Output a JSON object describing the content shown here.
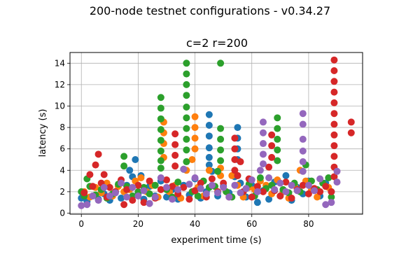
{
  "figure": {
    "suptitle": "200-node testnet configurations - v0.34.27"
  },
  "chart_data": {
    "type": "scatter",
    "title": "c=2 r=200",
    "xlabel": "experiment time (s)",
    "ylabel": "latency (s)",
    "xlim": [
      -4,
      99
    ],
    "ylim": [
      -0.1,
      15
    ],
    "xticks": [
      0,
      20,
      40,
      60,
      80
    ],
    "yticks": [
      0,
      2,
      4,
      6,
      8,
      10,
      12,
      14
    ],
    "grid": true,
    "colors": [
      "#1f77b4",
      "#ff7f0e",
      "#2ca02c",
      "#d62728",
      "#9467bd"
    ],
    "series": [
      {
        "color": "#1f77b4",
        "points": [
          [
            0,
            1.4
          ],
          [
            2,
            1.1
          ],
          [
            4,
            1.6
          ],
          [
            6,
            1.3
          ],
          [
            8,
            1.8
          ],
          [
            10,
            1.2
          ],
          [
            12,
            2.0
          ],
          [
            14,
            1.4
          ],
          [
            16,
            2.6
          ],
          [
            17,
            4.0
          ],
          [
            18,
            3.4
          ],
          [
            19,
            5.0
          ],
          [
            20,
            1.8
          ],
          [
            21,
            3.5
          ],
          [
            22,
            1.3
          ],
          [
            24,
            2.5
          ],
          [
            26,
            1.6
          ],
          [
            28,
            3.0
          ],
          [
            30,
            1.5
          ],
          [
            32,
            2.2
          ],
          [
            34,
            1.3
          ],
          [
            36,
            2.6
          ],
          [
            38,
            1.7
          ],
          [
            40,
            3.2
          ],
          [
            42,
            1.4
          ],
          [
            44,
            2.0
          ],
          [
            45,
            4.5
          ],
          [
            45,
            5.2
          ],
          [
            45,
            6.1
          ],
          [
            45,
            7.2
          ],
          [
            45,
            8.2
          ],
          [
            45,
            9.2
          ],
          [
            46,
            3.9
          ],
          [
            48,
            1.6
          ],
          [
            50,
            2.5
          ],
          [
            52,
            1.9
          ],
          [
            54,
            3.4
          ],
          [
            55,
            5.0
          ],
          [
            55,
            6.0
          ],
          [
            55,
            7.0
          ],
          [
            55,
            8.0
          ],
          [
            56,
            2.8
          ],
          [
            58,
            1.5
          ],
          [
            60,
            2.6
          ],
          [
            62,
            1.0
          ],
          [
            64,
            2.1
          ],
          [
            66,
            1.3
          ],
          [
            68,
            2.9
          ],
          [
            70,
            1.6
          ],
          [
            72,
            3.5
          ],
          [
            74,
            1.2
          ],
          [
            76,
            2.4
          ],
          [
            78,
            1.8
          ],
          [
            80,
            3.0
          ],
          [
            82,
            2.2
          ],
          [
            84,
            1.6
          ],
          [
            86,
            2.8
          ],
          [
            88,
            2.0
          ]
        ]
      },
      {
        "color": "#ff7f0e",
        "points": [
          [
            1,
            2.0
          ],
          [
            3,
            1.5
          ],
          [
            5,
            2.4
          ],
          [
            7,
            1.9
          ],
          [
            9,
            2.8
          ],
          [
            11,
            1.6
          ],
          [
            13,
            2.5
          ],
          [
            15,
            2.0
          ],
          [
            17,
            2.2
          ],
          [
            19,
            3.0
          ],
          [
            21,
            3.3
          ],
          [
            23,
            2.0
          ],
          [
            25,
            2.6
          ],
          [
            27,
            1.5
          ],
          [
            29,
            5.2
          ],
          [
            29,
            6.5
          ],
          [
            29,
            7.5
          ],
          [
            29,
            8.5
          ],
          [
            31,
            2.0
          ],
          [
            33,
            2.6
          ],
          [
            35,
            1.4
          ],
          [
            37,
            4.0
          ],
          [
            39,
            5.0
          ],
          [
            40,
            6.0
          ],
          [
            40,
            7.0
          ],
          [
            40,
            8.0
          ],
          [
            40,
            9.0
          ],
          [
            41,
            2.4
          ],
          [
            43,
            1.6
          ],
          [
            45,
            4.0
          ],
          [
            47,
            2.5
          ],
          [
            49,
            3.5
          ],
          [
            49,
            4.2
          ],
          [
            51,
            2.0
          ],
          [
            53,
            3.5
          ],
          [
            55,
            2.6
          ],
          [
            57,
            1.5
          ],
          [
            59,
            2.4
          ],
          [
            61,
            2.2
          ],
          [
            63,
            3.0
          ],
          [
            65,
            2.6
          ],
          [
            67,
            1.8
          ],
          [
            69,
            3.1
          ],
          [
            71,
            2.0
          ],
          [
            73,
            1.4
          ],
          [
            75,
            2.6
          ],
          [
            77,
            4.0
          ],
          [
            79,
            3.0
          ],
          [
            81,
            2.2
          ],
          [
            83,
            1.5
          ],
          [
            85,
            2.8
          ],
          [
            87,
            2.4
          ]
        ]
      },
      {
        "color": "#2ca02c",
        "points": [
          [
            0,
            2.0
          ],
          [
            1,
            1.6
          ],
          [
            2,
            3.2
          ],
          [
            3,
            2.5
          ],
          [
            5,
            1.7
          ],
          [
            7,
            2.2
          ],
          [
            9,
            1.4
          ],
          [
            11,
            1.8
          ],
          [
            13,
            2.7
          ],
          [
            15,
            4.4
          ],
          [
            15,
            5.3
          ],
          [
            16,
            2.5
          ],
          [
            18,
            1.6
          ],
          [
            20,
            2.0
          ],
          [
            22,
            2.4
          ],
          [
            24,
            1.8
          ],
          [
            26,
            2.6
          ],
          [
            28,
            4.2
          ],
          [
            28,
            4.9
          ],
          [
            28,
            5.8
          ],
          [
            28,
            6.8
          ],
          [
            28,
            7.8
          ],
          [
            28,
            8.8
          ],
          [
            28,
            9.8
          ],
          [
            28,
            10.8
          ],
          [
            30,
            2.2
          ],
          [
            32,
            1.5
          ],
          [
            34,
            2.9
          ],
          [
            36,
            4.1
          ],
          [
            37,
            4.8
          ],
          [
            37,
            5.9
          ],
          [
            37,
            6.9
          ],
          [
            37,
            7.9
          ],
          [
            37,
            8.9
          ],
          [
            37,
            9.9
          ],
          [
            37,
            11.0
          ],
          [
            37,
            12.0
          ],
          [
            37,
            13.0
          ],
          [
            37,
            14.0
          ],
          [
            39,
            2.0
          ],
          [
            41,
            1.6
          ],
          [
            43,
            3.0
          ],
          [
            45,
            2.4
          ],
          [
            47,
            2.5
          ],
          [
            48,
            3.9
          ],
          [
            49,
            4.9
          ],
          [
            49,
            5.9
          ],
          [
            49,
            6.9
          ],
          [
            49,
            7.9
          ],
          [
            49,
            14.0
          ],
          [
            51,
            2.0
          ],
          [
            53,
            1.5
          ],
          [
            55,
            3.5
          ],
          [
            57,
            2.0
          ],
          [
            59,
            2.7
          ],
          [
            61,
            1.6
          ],
          [
            63,
            3.3
          ],
          [
            65,
            2.3
          ],
          [
            67,
            2.6
          ],
          [
            69,
            4.9
          ],
          [
            69,
            5.9
          ],
          [
            69,
            6.9
          ],
          [
            69,
            7.9
          ],
          [
            69,
            8.9
          ],
          [
            71,
            2.2
          ],
          [
            73,
            1.9
          ],
          [
            75,
            2.8
          ],
          [
            77,
            2.0
          ],
          [
            79,
            4.5
          ],
          [
            81,
            3.0
          ],
          [
            83,
            2.2
          ],
          [
            85,
            2.8
          ],
          [
            87,
            3.3
          ],
          [
            88,
            1.5
          ]
        ]
      },
      {
        "color": "#d62728",
        "points": [
          [
            1,
            1.9
          ],
          [
            3,
            3.6
          ],
          [
            4,
            2.5
          ],
          [
            5,
            4.5
          ],
          [
            6,
            5.5
          ],
          [
            7,
            2.8
          ],
          [
            8,
            3.6
          ],
          [
            9,
            1.5
          ],
          [
            10,
            2.4
          ],
          [
            12,
            2.0
          ],
          [
            14,
            3.1
          ],
          [
            15,
            0.8
          ],
          [
            16,
            2.2
          ],
          [
            18,
            1.2
          ],
          [
            20,
            2.6
          ],
          [
            22,
            1.0
          ],
          [
            24,
            3.0
          ],
          [
            26,
            1.4
          ],
          [
            28,
            2.2
          ],
          [
            30,
            3.1
          ],
          [
            32,
            2.5
          ],
          [
            33,
            4.4
          ],
          [
            33,
            5.4
          ],
          [
            33,
            6.4
          ],
          [
            33,
            7.4
          ],
          [
            34,
            1.8
          ],
          [
            36,
            2.4
          ],
          [
            38,
            1.3
          ],
          [
            40,
            2.1
          ],
          [
            42,
            2.8
          ],
          [
            44,
            1.5
          ],
          [
            46,
            3.2
          ],
          [
            48,
            2.0
          ],
          [
            50,
            2.8
          ],
          [
            52,
            1.5
          ],
          [
            54,
            4.0
          ],
          [
            54,
            5.0
          ],
          [
            54,
            6.0
          ],
          [
            54,
            7.0
          ],
          [
            55,
            3.5
          ],
          [
            56,
            4.8
          ],
          [
            57,
            2.0
          ],
          [
            59,
            3.2
          ],
          [
            60,
            1.5
          ],
          [
            62,
            2.5
          ],
          [
            64,
            2.0
          ],
          [
            66,
            4.3
          ],
          [
            67,
            5.2
          ],
          [
            67,
            6.3
          ],
          [
            67,
            7.3
          ],
          [
            68,
            2.1
          ],
          [
            70,
            1.6
          ],
          [
            72,
            2.9
          ],
          [
            74,
            1.4
          ],
          [
            76,
            2.2
          ],
          [
            78,
            2.6
          ],
          [
            80,
            1.8
          ],
          [
            82,
            2.3
          ],
          [
            84,
            2.0
          ],
          [
            86,
            2.5
          ],
          [
            88,
            2.0
          ],
          [
            89,
            3.4
          ],
          [
            89,
            4.3
          ],
          [
            89,
            5.3
          ],
          [
            89,
            6.3
          ],
          [
            89,
            7.3
          ],
          [
            89,
            8.3
          ],
          [
            89,
            9.3
          ],
          [
            89,
            10.3
          ],
          [
            89,
            11.3
          ],
          [
            89,
            12.3
          ],
          [
            89,
            13.3
          ],
          [
            89,
            14.3
          ],
          [
            95,
            7.5
          ],
          [
            95,
            8.5
          ]
        ]
      },
      {
        "color": "#9467bd",
        "points": [
          [
            0,
            0.7
          ],
          [
            2,
            0.8
          ],
          [
            4,
            1.6
          ],
          [
            6,
            1.2
          ],
          [
            8,
            2.4
          ],
          [
            10,
            1.6
          ],
          [
            12,
            1.9
          ],
          [
            14,
            2.8
          ],
          [
            16,
            1.5
          ],
          [
            18,
            2.4
          ],
          [
            20,
            1.6
          ],
          [
            22,
            2.1
          ],
          [
            24,
            0.9
          ],
          [
            26,
            1.5
          ],
          [
            28,
            3.3
          ],
          [
            30,
            2.4
          ],
          [
            32,
            1.3
          ],
          [
            34,
            2.2
          ],
          [
            36,
            4.1
          ],
          [
            38,
            2.7
          ],
          [
            40,
            3.3
          ],
          [
            42,
            2.3
          ],
          [
            44,
            1.8
          ],
          [
            46,
            2.6
          ],
          [
            48,
            1.9
          ],
          [
            50,
            2.4
          ],
          [
            52,
            1.5
          ],
          [
            54,
            2.6
          ],
          [
            56,
            1.9
          ],
          [
            58,
            2.3
          ],
          [
            60,
            3.1
          ],
          [
            62,
            2.0
          ],
          [
            63,
            4.0
          ],
          [
            64,
            4.6
          ],
          [
            64,
            5.5
          ],
          [
            64,
            6.5
          ],
          [
            64,
            7.5
          ],
          [
            64,
            8.5
          ],
          [
            66,
            3.3
          ],
          [
            68,
            2.2
          ],
          [
            70,
            2.8
          ],
          [
            72,
            2.0
          ],
          [
            74,
            2.6
          ],
          [
            76,
            2.1
          ],
          [
            78,
            3.9
          ],
          [
            78,
            4.8
          ],
          [
            78,
            5.8
          ],
          [
            78,
            6.9
          ],
          [
            78,
            8.3
          ],
          [
            78,
            9.3
          ],
          [
            80,
            2.6
          ],
          [
            82,
            2.1
          ],
          [
            84,
            3.2
          ],
          [
            86,
            0.8
          ],
          [
            88,
            1.0
          ],
          [
            90,
            3.9
          ],
          [
            90,
            2.9
          ]
        ]
      }
    ]
  }
}
